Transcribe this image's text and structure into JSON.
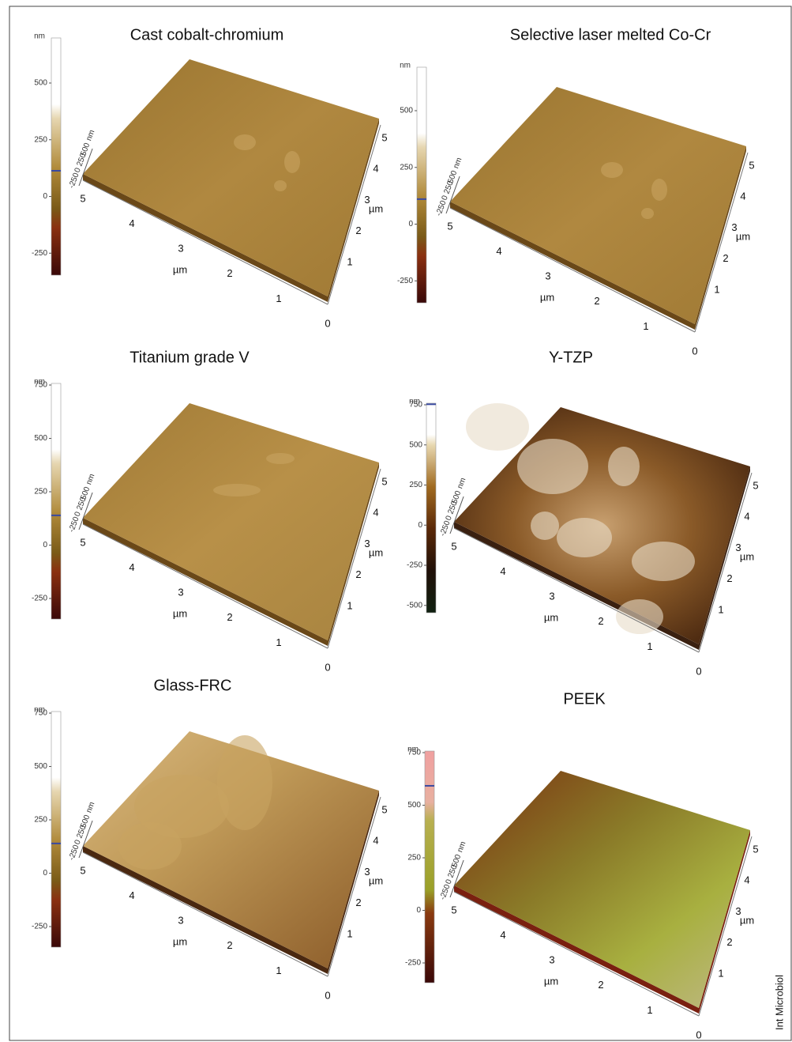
{
  "figure": {
    "credit": "Int Microbiol",
    "panels": [
      {
        "title": "Cast cobalt-chromium",
        "colorbar_unit": "nm",
        "colorbar_ticks": [
          500,
          250,
          0,
          -250
        ],
        "z_unit": "nm",
        "z_ticks": [
          500,
          250,
          0,
          -250
        ],
        "axis_unit": "µm",
        "front_ticks": [
          5,
          4,
          3,
          2,
          1,
          0
        ],
        "side_ticks": [
          1,
          2,
          3,
          4,
          5
        ]
      },
      {
        "title": "Selective laser melted Co-Cr",
        "colorbar_unit": "nm",
        "colorbar_ticks": [
          500,
          250,
          0,
          -250
        ],
        "z_unit": "nm",
        "z_ticks": [
          500,
          250,
          0,
          -250
        ],
        "axis_unit": "µm",
        "front_ticks": [
          5,
          4,
          3,
          2,
          1,
          0
        ],
        "side_ticks": [
          1,
          2,
          3,
          4,
          5
        ]
      },
      {
        "title": "Titanium grade V",
        "colorbar_unit": "nm",
        "colorbar_ticks": [
          750,
          500,
          250,
          0,
          -250
        ],
        "z_unit": "nm",
        "z_ticks": [
          500,
          250,
          0,
          -250
        ],
        "axis_unit": "µm",
        "front_ticks": [
          5,
          4,
          3,
          2,
          1,
          0
        ],
        "side_ticks": [
          1,
          2,
          3,
          4,
          5
        ]
      },
      {
        "title": "Y-TZP",
        "colorbar_unit": "nm",
        "colorbar_ticks": [
          750,
          500,
          250,
          0,
          -250,
          -500
        ],
        "z_unit": "nm",
        "z_ticks": [
          500,
          250,
          0,
          -250
        ],
        "axis_unit": "µm",
        "front_ticks": [
          5,
          4,
          3,
          2,
          1,
          0
        ],
        "side_ticks": [
          1,
          2,
          3,
          4,
          5
        ]
      },
      {
        "title": "Glass-FRC",
        "colorbar_unit": "nm",
        "colorbar_ticks": [
          750,
          500,
          250,
          0,
          -250
        ],
        "z_unit": "nm",
        "z_ticks": [
          500,
          250,
          0,
          -250
        ],
        "axis_unit": "µm",
        "front_ticks": [
          5,
          4,
          3,
          2,
          1,
          0
        ],
        "side_ticks": [
          1,
          2,
          3,
          4,
          5
        ]
      },
      {
        "title": "PEEK",
        "colorbar_unit": "nm",
        "colorbar_ticks": [
          750,
          500,
          250,
          0,
          -250
        ],
        "z_unit": "nm",
        "z_ticks": [
          500,
          250,
          0,
          -250
        ],
        "axis_unit": "µm",
        "front_ticks": [
          5,
          4,
          3,
          2,
          1,
          0
        ],
        "side_ticks": [
          1,
          2,
          3,
          4,
          5
        ]
      }
    ]
  }
}
